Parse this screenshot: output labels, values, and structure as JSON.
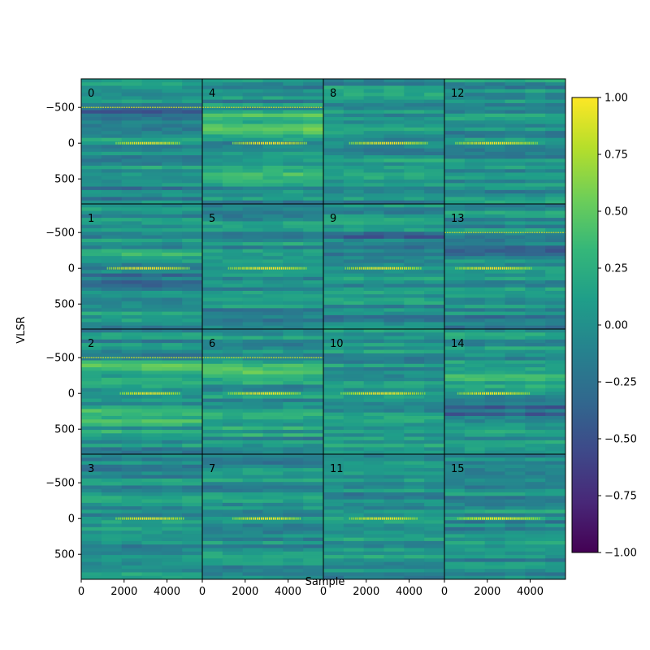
{
  "chart_data": {
    "type": "heatmap",
    "title": "",
    "xlabel": "Sample",
    "ylabel": "VLSR",
    "grid": false,
    "layout": {
      "rows": 4,
      "cols": 4,
      "order": "column-major"
    },
    "panels": [
      {
        "label": "0",
        "row": 0,
        "col": 0,
        "center_line": 0,
        "extra_line": -500,
        "band": "cool",
        "center_start": 1600,
        "center_end": 4600
      },
      {
        "label": "1",
        "row": 1,
        "col": 0,
        "center_line": 0,
        "extra_line": null,
        "band": "mixed",
        "center_start": 1200,
        "center_end": 5000
      },
      {
        "label": "2",
        "row": 2,
        "col": 0,
        "center_line": 0,
        "extra_line": -500,
        "band": "warm",
        "center_start": 1800,
        "center_end": 4600
      },
      {
        "label": "3",
        "row": 3,
        "col": 0,
        "center_line": 0,
        "extra_line": null,
        "band": "plain",
        "center_start": 1600,
        "center_end": 4800
      },
      {
        "label": "4",
        "row": 0,
        "col": 1,
        "center_line": 0,
        "extra_line": -500,
        "band": "warm",
        "center_start": 1400,
        "center_end": 4900
      },
      {
        "label": "5",
        "row": 1,
        "col": 1,
        "center_line": 0,
        "extra_line": null,
        "band": "plain",
        "center_start": 1200,
        "center_end": 4900
      },
      {
        "label": "6",
        "row": 2,
        "col": 1,
        "center_line": 0,
        "extra_line": -500,
        "band": "warm",
        "center_start": 1200,
        "center_end": 4600
      },
      {
        "label": "7",
        "row": 3,
        "col": 1,
        "center_line": 0,
        "extra_line": null,
        "band": "plain",
        "center_start": 1400,
        "center_end": 4600
      },
      {
        "label": "8",
        "row": 0,
        "col": 2,
        "center_line": 0,
        "extra_line": null,
        "band": "plain",
        "center_start": 1200,
        "center_end": 4900
      },
      {
        "label": "9",
        "row": 1,
        "col": 2,
        "center_line": 0,
        "extra_line": null,
        "band": "cool",
        "center_start": 1000,
        "center_end": 4600
      },
      {
        "label": "10",
        "row": 2,
        "col": 2,
        "center_line": 0,
        "extra_line": null,
        "band": "plain",
        "center_start": 800,
        "center_end": 4700
      },
      {
        "label": "11",
        "row": 3,
        "col": 2,
        "center_line": 0,
        "extra_line": null,
        "band": "plain",
        "center_start": 1200,
        "center_end": 4400
      },
      {
        "label": "12",
        "row": 0,
        "col": 3,
        "center_line": 0,
        "extra_line": null,
        "band": "plain",
        "center_start": 500,
        "center_end": 4300
      },
      {
        "label": "13",
        "row": 1,
        "col": 3,
        "center_line": 0,
        "extra_line": -500,
        "band": "cool",
        "center_start": 500,
        "center_end": 4100
      },
      {
        "label": "14",
        "row": 2,
        "col": 3,
        "center_line": 0,
        "extra_line": null,
        "band": "mixed",
        "center_start": 600,
        "center_end": 4000
      },
      {
        "label": "15",
        "row": 3,
        "col": 3,
        "center_line": 0,
        "extra_line": null,
        "band": "plain",
        "center_start": 600,
        "center_end": 4400
      }
    ],
    "x_axis": {
      "range": [
        0,
        5650
      ],
      "ticks": [
        0,
        2000,
        4000
      ],
      "tick_labels": [
        "0",
        "2000",
        "4000"
      ]
    },
    "y_axis": {
      "range": [
        850,
        -900
      ],
      "inverted": true,
      "ticks": [
        -500,
        0,
        500
      ],
      "tick_labels": [
        "−500",
        "0",
        "500"
      ]
    },
    "colorbar": {
      "colormap": "viridis",
      "range": [
        -1,
        1
      ],
      "ticks": [
        1.0,
        0.75,
        0.5,
        0.25,
        0.0,
        -0.25,
        -0.5,
        -0.75,
        -1.0
      ],
      "tick_labels": [
        "1.00",
        "0.75",
        "0.50",
        "0.25",
        "0.00",
        "−0.25",
        "−0.50",
        "−0.75",
        "−1.00"
      ],
      "stops": [
        "#440154",
        "#482878",
        "#3e4989",
        "#31688e",
        "#26828e",
        "#1f9e89",
        "#35b779",
        "#6ece58",
        "#b5de2b",
        "#fde725"
      ]
    }
  }
}
